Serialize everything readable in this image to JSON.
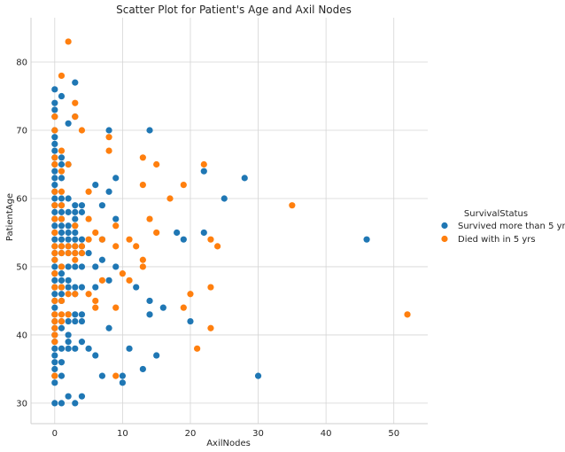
{
  "chart_data": {
    "type": "scatter",
    "title": "Scatter Plot for Patient's Age and Axil Nodes",
    "xlabel": "AxilNodes",
    "ylabel": "PatientAge",
    "xlim": [
      -3.5,
      55
    ],
    "ylim": [
      27,
      86.5
    ],
    "xticks": [
      0,
      10,
      20,
      30,
      40,
      50
    ],
    "yticks": [
      30,
      40,
      50,
      60,
      70,
      80
    ],
    "grid": true,
    "legend": {
      "title": "SurvivalStatus",
      "placement": "right"
    },
    "series": [
      {
        "name": "Survived more than 5 yrs",
        "color": "#1f77b4",
        "points": [
          [
            0,
            76
          ],
          [
            0,
            74
          ],
          [
            0,
            73
          ],
          [
            0,
            72
          ],
          [
            0,
            70
          ],
          [
            0,
            69
          ],
          [
            0,
            68
          ],
          [
            0,
            67
          ],
          [
            0,
            66
          ],
          [
            0,
            65
          ],
          [
            0,
            64
          ],
          [
            0,
            63
          ],
          [
            0,
            62
          ],
          [
            0,
            61
          ],
          [
            0,
            60
          ],
          [
            0,
            59
          ],
          [
            0,
            58
          ],
          [
            0,
            57
          ],
          [
            0,
            56
          ],
          [
            0,
            55
          ],
          [
            0,
            54
          ],
          [
            0,
            53
          ],
          [
            0,
            52
          ],
          [
            0,
            51
          ],
          [
            0,
            50
          ],
          [
            0,
            49
          ],
          [
            0,
            48
          ],
          [
            0,
            47
          ],
          [
            0,
            46
          ],
          [
            0,
            45
          ],
          [
            0,
            44
          ],
          [
            0,
            43
          ],
          [
            0,
            42
          ],
          [
            0,
            41
          ],
          [
            0,
            40
          ],
          [
            0,
            39
          ],
          [
            0,
            38
          ],
          [
            0,
            37
          ],
          [
            0,
            36
          ],
          [
            0,
            35
          ],
          [
            0,
            34
          ],
          [
            0,
            33
          ],
          [
            0,
            30
          ],
          [
            1,
            75
          ],
          [
            1,
            66
          ],
          [
            1,
            65
          ],
          [
            1,
            63
          ],
          [
            1,
            60
          ],
          [
            1,
            59
          ],
          [
            1,
            58
          ],
          [
            1,
            57
          ],
          [
            1,
            56
          ],
          [
            1,
            55
          ],
          [
            1,
            54
          ],
          [
            1,
            53
          ],
          [
            1,
            52
          ],
          [
            1,
            50
          ],
          [
            1,
            49
          ],
          [
            1,
            48
          ],
          [
            1,
            47
          ],
          [
            1,
            46
          ],
          [
            1,
            45
          ],
          [
            1,
            42
          ],
          [
            1,
            41
          ],
          [
            1,
            38
          ],
          [
            1,
            36
          ],
          [
            1,
            34
          ],
          [
            1,
            30
          ],
          [
            2,
            71
          ],
          [
            2,
            65
          ],
          [
            2,
            60
          ],
          [
            2,
            58
          ],
          [
            2,
            56
          ],
          [
            2,
            55
          ],
          [
            2,
            54
          ],
          [
            2,
            53
          ],
          [
            2,
            52
          ],
          [
            2,
            50
          ],
          [
            2,
            48
          ],
          [
            2,
            47
          ],
          [
            2,
            43
          ],
          [
            2,
            42
          ],
          [
            2,
            40
          ],
          [
            2,
            39
          ],
          [
            2,
            38
          ],
          [
            2,
            31
          ],
          [
            3,
            77
          ],
          [
            3,
            72
          ],
          [
            3,
            59
          ],
          [
            3,
            58
          ],
          [
            3,
            57
          ],
          [
            3,
            56
          ],
          [
            3,
            55
          ],
          [
            3,
            54
          ],
          [
            3,
            53
          ],
          [
            3,
            52
          ],
          [
            3,
            50
          ],
          [
            3,
            47
          ],
          [
            3,
            46
          ],
          [
            3,
            43
          ],
          [
            3,
            42
          ],
          [
            3,
            38
          ],
          [
            3,
            30
          ],
          [
            4,
            59
          ],
          [
            4,
            58
          ],
          [
            4,
            54
          ],
          [
            4,
            53
          ],
          [
            4,
            52
          ],
          [
            4,
            50
          ],
          [
            4,
            47
          ],
          [
            4,
            43
          ],
          [
            4,
            42
          ],
          [
            4,
            39
          ],
          [
            4,
            31
          ],
          [
            5,
            52
          ],
          [
            5,
            38
          ],
          [
            6,
            62
          ],
          [
            6,
            50
          ],
          [
            6,
            47
          ],
          [
            6,
            37
          ],
          [
            7,
            59
          ],
          [
            7,
            54
          ],
          [
            7,
            51
          ],
          [
            7,
            34
          ],
          [
            8,
            70
          ],
          [
            8,
            61
          ],
          [
            8,
            48
          ],
          [
            8,
            41
          ],
          [
            9,
            63
          ],
          [
            9,
            57
          ],
          [
            9,
            50
          ],
          [
            10,
            34
          ],
          [
            10,
            33
          ],
          [
            11,
            38
          ],
          [
            12,
            47
          ],
          [
            13,
            35
          ],
          [
            14,
            70
          ],
          [
            14,
            45
          ],
          [
            14,
            43
          ],
          [
            15,
            37
          ],
          [
            16,
            44
          ],
          [
            18,
            55
          ],
          [
            19,
            54
          ],
          [
            20,
            42
          ],
          [
            22,
            64
          ],
          [
            22,
            55
          ],
          [
            25,
            60
          ],
          [
            28,
            63
          ],
          [
            30,
            34
          ],
          [
            46,
            54
          ]
        ]
      },
      {
        "name": "Died with in 5 yrs",
        "color": "#ff7f0e",
        "points": [
          [
            0,
            72
          ],
          [
            0,
            70
          ],
          [
            0,
            66
          ],
          [
            0,
            65
          ],
          [
            0,
            61
          ],
          [
            0,
            59
          ],
          [
            0,
            57
          ],
          [
            0,
            55
          ],
          [
            0,
            53
          ],
          [
            0,
            52
          ],
          [
            0,
            51
          ],
          [
            0,
            49
          ],
          [
            0,
            47
          ],
          [
            0,
            45
          ],
          [
            0,
            43
          ],
          [
            0,
            42
          ],
          [
            0,
            41
          ],
          [
            0,
            40
          ],
          [
            0,
            39
          ],
          [
            0,
            34
          ],
          [
            1,
            78
          ],
          [
            1,
            67
          ],
          [
            1,
            64
          ],
          [
            1,
            61
          ],
          [
            1,
            59
          ],
          [
            1,
            57
          ],
          [
            1,
            53
          ],
          [
            1,
            52
          ],
          [
            1,
            50
          ],
          [
            1,
            47
          ],
          [
            1,
            45
          ],
          [
            1,
            43
          ],
          [
            1,
            42
          ],
          [
            2,
            83
          ],
          [
            2,
            65
          ],
          [
            2,
            53
          ],
          [
            2,
            52
          ],
          [
            2,
            46
          ],
          [
            2,
            43
          ],
          [
            3,
            74
          ],
          [
            3,
            72
          ],
          [
            3,
            56
          ],
          [
            3,
            53
          ],
          [
            3,
            52
          ],
          [
            3,
            51
          ],
          [
            3,
            46
          ],
          [
            4,
            70
          ],
          [
            4,
            53
          ],
          [
            4,
            52
          ],
          [
            5,
            61
          ],
          [
            5,
            57
          ],
          [
            5,
            54
          ],
          [
            5,
            46
          ],
          [
            6,
            55
          ],
          [
            6,
            45
          ],
          [
            6,
            44
          ],
          [
            7,
            54
          ],
          [
            7,
            48
          ],
          [
            8,
            69
          ],
          [
            8,
            67
          ],
          [
            9,
            56
          ],
          [
            9,
            53
          ],
          [
            9,
            44
          ],
          [
            9,
            34
          ],
          [
            10,
            49
          ],
          [
            11,
            54
          ],
          [
            11,
            48
          ],
          [
            12,
            53
          ],
          [
            13,
            66
          ],
          [
            13,
            62
          ],
          [
            13,
            51
          ],
          [
            13,
            50
          ],
          [
            14,
            57
          ],
          [
            15,
            65
          ],
          [
            15,
            55
          ],
          [
            17,
            60
          ],
          [
            19,
            62
          ],
          [
            19,
            44
          ],
          [
            20,
            46
          ],
          [
            21,
            38
          ],
          [
            22,
            65
          ],
          [
            23,
            54
          ],
          [
            23,
            47
          ],
          [
            23,
            41
          ],
          [
            24,
            53
          ],
          [
            35,
            59
          ],
          [
            52,
            43
          ]
        ]
      }
    ]
  }
}
